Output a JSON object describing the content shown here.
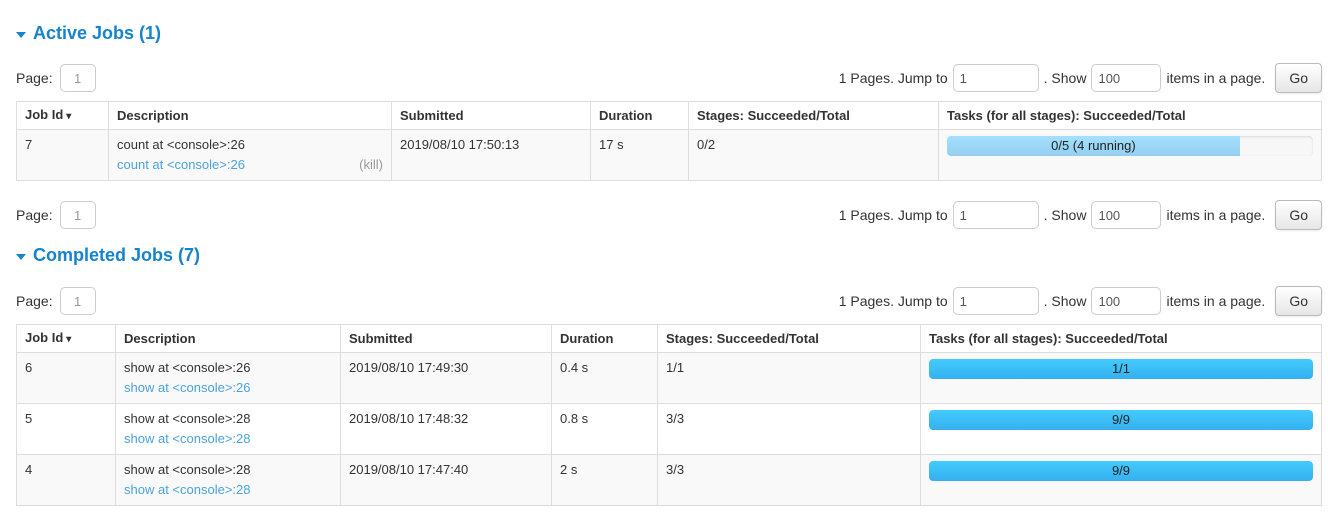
{
  "colors": {
    "section_title": "#1584cc",
    "table_link": "#4ba3da",
    "kill_label": "#999999",
    "row_stripe": "#f9f9f9",
    "table_border": "#dddddd",
    "bar_running_top": "#A4E0FF",
    "bar_running_bottom": "#94CFEF",
    "bar_completed_top": "#44CBFF",
    "bar_completed_bottom": "#34B0EE"
  },
  "icons": {
    "collapse_arrow": "down-triangle",
    "sort_arrow": "▾"
  },
  "columns": {
    "job_id": "Job Id",
    "description": "Description",
    "submitted": "Submitted",
    "duration": "Duration",
    "stages": "Stages: Succeeded/Total",
    "tasks": "Tasks (for all stages): Succeeded/Total"
  },
  "pagination": {
    "page_label": "Page:",
    "page_value": "1",
    "total_pages_label": "1 Pages. Jump to",
    "jump_value": "1",
    "show_label": ". Show",
    "show_value": "100",
    "items_label": "items in a page.",
    "go_label": "Go"
  },
  "active_jobs": {
    "title": "Active Jobs (1)",
    "rows": [
      {
        "job_id": "7",
        "description": "count at <console>:26",
        "description_link": "count at <console>:26",
        "kill_label": "(kill)",
        "submitted": "2019/08/10 17:50:13",
        "duration": "17 s",
        "stages": "0/2",
        "tasks_label": "0/5 (4 running)",
        "tasks_pct": 80
      }
    ]
  },
  "completed_jobs": {
    "title": "Completed Jobs (7)",
    "rows": [
      {
        "job_id": "6",
        "description": "show at <console>:26",
        "description_link": "show at <console>:26",
        "submitted": "2019/08/10 17:49:30",
        "duration": "0.4 s",
        "stages": "1/1",
        "tasks_label": "1/1",
        "tasks_pct": 100
      },
      {
        "job_id": "5",
        "description": "show at <console>:28",
        "description_link": "show at <console>:28",
        "submitted": "2019/08/10 17:48:32",
        "duration": "0.8 s",
        "stages": "3/3",
        "tasks_label": "9/9",
        "tasks_pct": 100
      },
      {
        "job_id": "4",
        "description": "show at <console>:28",
        "description_link": "show at <console>:28",
        "submitted": "2019/08/10 17:47:40",
        "duration": "2 s",
        "stages": "3/3",
        "tasks_label": "9/9",
        "tasks_pct": 100
      }
    ]
  }
}
